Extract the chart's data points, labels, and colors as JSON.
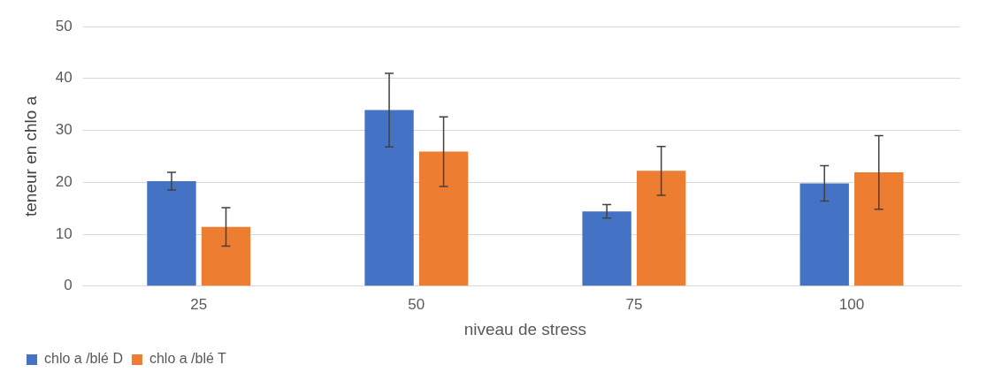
{
  "chart_data": {
    "type": "bar",
    "xlabel": "niveau de stress",
    "ylabel": "teneur en chlo a",
    "categories": [
      "25",
      "50",
      "75",
      "100"
    ],
    "series": [
      {
        "name": "chlo a /blé D",
        "color": "#4472c4",
        "values": [
          20.2,
          33.9,
          14.4,
          19.8
        ],
        "errors": [
          1.7,
          7.1,
          1.3,
          3.4
        ]
      },
      {
        "name": "chlo a /blé T",
        "color": "#ed7d31",
        "values": [
          11.4,
          25.9,
          22.2,
          21.9
        ],
        "errors": [
          3.7,
          6.7,
          4.7,
          7.1
        ]
      }
    ],
    "ylim": [
      0,
      50
    ],
    "yticks": [
      0,
      10,
      20,
      30,
      40,
      50
    ],
    "grid": "y",
    "legend": "bottom left"
  }
}
